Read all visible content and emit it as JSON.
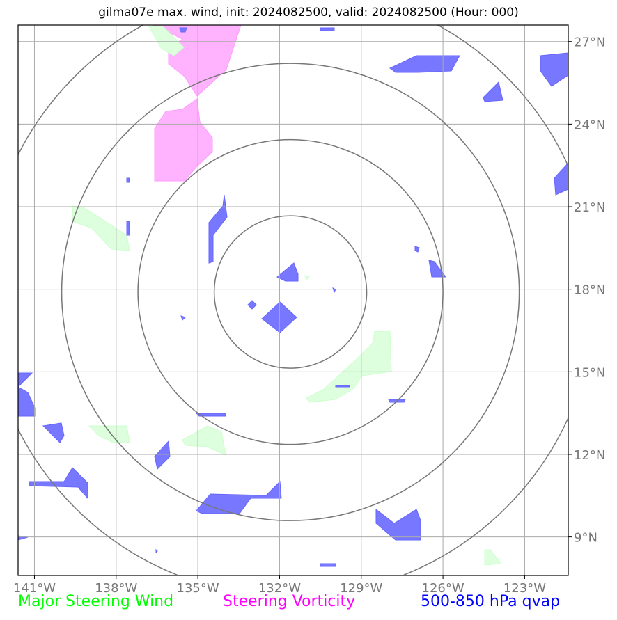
{
  "title": "gilma07e max. wind, init: 2024082500, valid: 2024082500 (Hour: 000)",
  "map": {
    "lon_range": [
      -141.6,
      -121.4
    ],
    "lat_range": [
      7.6,
      27.6
    ],
    "lon_ticks": [
      -141,
      -138,
      -135,
      -132,
      -129,
      -126,
      -123
    ],
    "lat_ticks": [
      9,
      12,
      15,
      18,
      21,
      24,
      27
    ],
    "lon_tick_labels": [
      "141°W",
      "138°W",
      "135°W",
      "132°W",
      "129°W",
      "126°W",
      "123°W"
    ],
    "lat_tick_labels": [
      "9°N",
      "12°N",
      "15°N",
      "18°N",
      "21°N",
      "24°N",
      "27°N"
    ],
    "center": {
      "lon": -131.6,
      "lat": 17.9
    },
    "range_rings_deg": [
      2.8,
      5.6,
      8.4,
      11.2
    ],
    "colors": {
      "frame": "#000000",
      "grid": "#aaaaaa",
      "rings": "#777777",
      "wind": "#ccffcc",
      "vorticity": "#ff99ff",
      "qvap": "#7777ff"
    }
  },
  "legend": {
    "wind": {
      "label": "Major Steering Wind",
      "color": "#00ff00"
    },
    "vorticity": {
      "label": "Steering Vorticity",
      "color": "#ff00ff"
    },
    "qvap": {
      "label": "500-850 hPa qvap",
      "color": "#0000ff"
    }
  }
}
